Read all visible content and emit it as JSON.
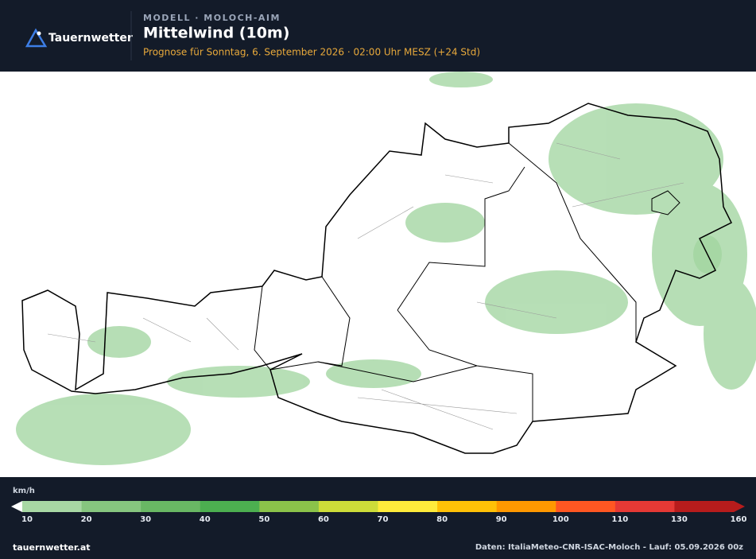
{
  "header": {
    "brand": "Tauernwetter",
    "model": "MODELL · MOLOCH-AIM",
    "title": "Mittelwind (10m)",
    "subtitle": "Prognose für Sonntag, 6. September 2026 · 02:00 Uhr MESZ  (+24 Std)"
  },
  "legend": {
    "unit": "km/h",
    "stops": [
      10,
      20,
      30,
      40,
      50,
      60,
      70,
      80,
      90,
      100,
      110,
      130,
      160
    ],
    "colors": [
      "#a8d8a4",
      "#86c67f",
      "#69b864",
      "#4caf50",
      "#8bc34a",
      "#cddc39",
      "#ffeb3b",
      "#ffc107",
      "#ff9800",
      "#ff5722",
      "#e53935",
      "#b71c1c"
    ]
  },
  "footer": {
    "site": "tauernwetter.at",
    "source": "Daten: ItaliaMeteo-CNR-ISAC-Moloch - Lauf: 05.09.2026 00z"
  }
}
